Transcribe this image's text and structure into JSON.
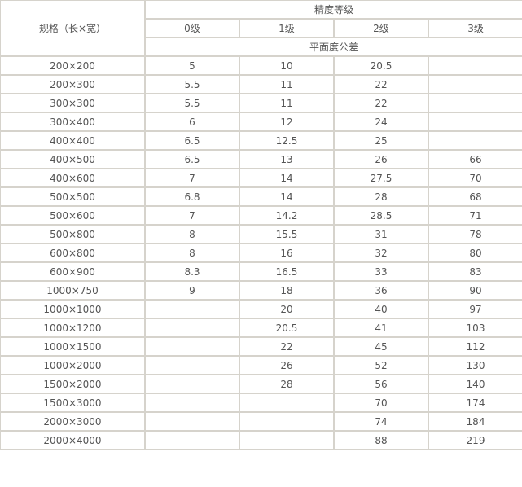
{
  "header": {
    "spec_label": "规格（长×宽）",
    "grade_group_label": "精度等级",
    "grades": [
      "0级",
      "1级",
      "2级",
      "3级"
    ],
    "tolerance_label": "平面度公差"
  },
  "rows": [
    {
      "spec": "200×200",
      "values": [
        "5",
        "10",
        "20.5",
        ""
      ]
    },
    {
      "spec": "200×300",
      "values": [
        "5.5",
        "11",
        "22",
        ""
      ]
    },
    {
      "spec": "300×300",
      "values": [
        "5.5",
        "11",
        "22",
        ""
      ]
    },
    {
      "spec": "300×400",
      "values": [
        "6",
        "12",
        "24",
        ""
      ]
    },
    {
      "spec": "400×400",
      "values": [
        "6.5",
        "12.5",
        "25",
        ""
      ]
    },
    {
      "spec": "400×500",
      "values": [
        "6.5",
        "13",
        "26",
        "66"
      ]
    },
    {
      "spec": "400×600",
      "values": [
        "7",
        "14",
        "27.5",
        "70"
      ]
    },
    {
      "spec": "500×500",
      "values": [
        "6.8",
        "14",
        "28",
        "68"
      ]
    },
    {
      "spec": "500×600",
      "values": [
        "7",
        "14.2",
        "28.5",
        "71"
      ]
    },
    {
      "spec": "500×800",
      "values": [
        "8",
        "15.5",
        "31",
        "78"
      ]
    },
    {
      "spec": "600×800",
      "values": [
        "8",
        "16",
        "32",
        "80"
      ]
    },
    {
      "spec": "600×900",
      "values": [
        "8.3",
        "16.5",
        "33",
        "83"
      ]
    },
    {
      "spec": "1000×750",
      "values": [
        "9",
        "18",
        "36",
        "90"
      ]
    },
    {
      "spec": "1000×1000",
      "values": [
        "",
        "20",
        "40",
        "97"
      ]
    },
    {
      "spec": "1000×1200",
      "values": [
        "",
        "20.5",
        "41",
        "103"
      ]
    },
    {
      "spec": "1000×1500",
      "values": [
        "",
        "22",
        "45",
        "112"
      ]
    },
    {
      "spec": "1000×2000",
      "values": [
        "",
        "26",
        "52",
        "130"
      ]
    },
    {
      "spec": "1500×2000",
      "values": [
        "",
        "28",
        "56",
        "140"
      ]
    },
    {
      "spec": "1500×3000",
      "values": [
        "",
        "",
        "70",
        "174"
      ]
    },
    {
      "spec": "2000×3000",
      "values": [
        "",
        "",
        "74",
        "184"
      ]
    },
    {
      "spec": "2000×4000",
      "values": [
        "",
        "",
        "88",
        "219"
      ]
    }
  ]
}
